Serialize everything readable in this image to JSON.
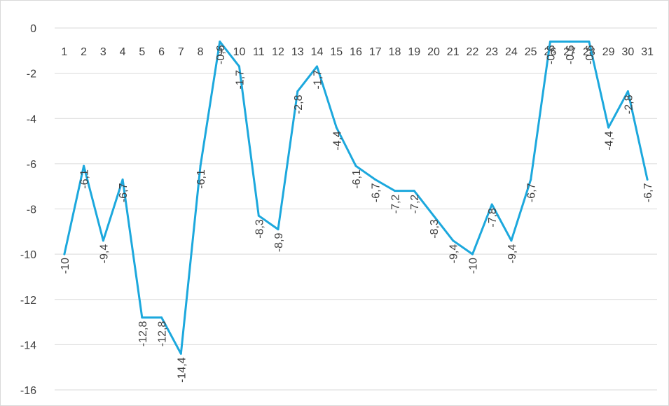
{
  "chart_data": {
    "type": "line",
    "title": "",
    "xlabel": "",
    "ylabel": "",
    "ylim": [
      -16,
      0
    ],
    "ytick_step": 2,
    "grid": true,
    "legend": "none",
    "x_axis_position": "top",
    "categories": [
      "1",
      "2",
      "3",
      "4",
      "5",
      "6",
      "7",
      "8",
      "9",
      "10",
      "11",
      "12",
      "13",
      "14",
      "15",
      "16",
      "17",
      "18",
      "19",
      "20",
      "21",
      "22",
      "23",
      "24",
      "25",
      "26",
      "27",
      "28",
      "29",
      "30",
      "31"
    ],
    "y_tick_labels": [
      "0",
      "-2",
      "-4",
      "-6",
      "-8",
      "-10",
      "-12",
      "-14",
      "-16"
    ],
    "series": [
      {
        "color": "#1ca8dd",
        "values": [
          -10,
          -6.1,
          -9.4,
          -6.7,
          -12.8,
          -12.8,
          -14.4,
          -6.1,
          -0.6,
          -1.7,
          -8.3,
          -8.9,
          -2.8,
          -1.7,
          -4.4,
          -6.1,
          -6.7,
          -7.2,
          -7.2,
          -8.3,
          -9.4,
          -10,
          -7.8,
          -9.4,
          -6.7,
          -0.6,
          -0.6,
          -0.6,
          -4.4,
          -2.8,
          -6.7
        ],
        "data_labels": [
          "-10",
          "-6,1",
          "-9,4",
          "-6,7",
          "-12,8",
          "-12,8",
          "-14,4",
          "-6,1",
          "-0,6",
          "-1,7",
          "-8,3",
          "-8,9",
          "-2,8",
          "-1,7",
          "-4,4",
          "-6,1",
          "-6,7",
          "-7,2",
          "-7,2",
          "-8,3",
          "-9,4",
          "-10",
          "-7,8",
          "-9,4",
          "-6,7",
          "-0,6",
          "-0,6",
          "-0,6",
          "-4,4",
          "-2,8",
          "-6,7"
        ]
      }
    ]
  }
}
